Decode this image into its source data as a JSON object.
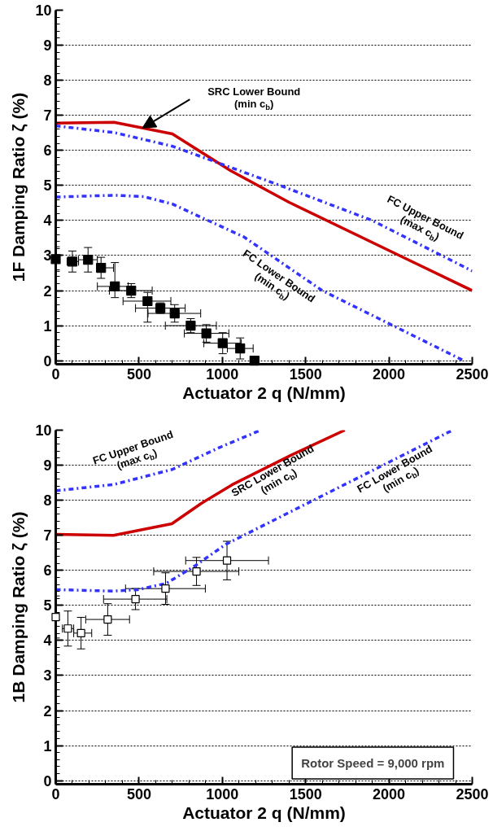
{
  "chart_data": [
    {
      "type": "line",
      "xlabel": "Actuator 2 q (N/mm)",
      "ylabel": "1F Damping Ratio ζ (%)",
      "xlim": [
        0,
        2500
      ],
      "ylim": [
        -0.1,
        10
      ],
      "xticks": [
        0,
        500,
        1000,
        1500,
        2000,
        2500
      ],
      "yticks": [
        0,
        1,
        2,
        3,
        4,
        5,
        6,
        7,
        8,
        9,
        10
      ],
      "grid": "y",
      "series": [
        {
          "color": "#cc0000",
          "line_style": "solid",
          "x": [
            0,
            350,
            700,
            1050,
            1400,
            2500
          ],
          "values": [
            6.78,
            6.8,
            6.47,
            5.42,
            4.52,
            2.0
          ]
        },
        {
          "color": "#3333ff",
          "line_style": "dashdot",
          "x": [
            0,
            350,
            700,
            1330,
            1900,
            2500
          ],
          "values": [
            6.7,
            6.51,
            6.12,
            5.03,
            4.0,
            2.56
          ]
        },
        {
          "color": "#3333ff",
          "line_style": "dashdot",
          "x": [
            0,
            350,
            530,
            700,
            1130,
            1600,
            2450
          ],
          "values": [
            4.67,
            4.72,
            4.68,
            4.47,
            3.53,
            2.0,
            0.0
          ]
        },
        {
          "type": "scatter",
          "color": "#000000",
          "marker": "square",
          "x": [
            0,
            100,
            194,
            272,
            355,
            453,
            551,
            628,
            714,
            810,
            904,
            1002,
            1107,
            1193
          ],
          "values": [
            2.9,
            2.83,
            2.88,
            2.65,
            2.12,
            2.0,
            1.7,
            1.5,
            1.35,
            1.0,
            0.78,
            0.5,
            0.35,
            0.0
          ],
          "errors": [
            0.35,
            0.3,
            0.35,
            0.3,
            [
              1.8,
              2.8
            ],
            0.2,
            [
              1.1,
              1.95
            ],
            0.15,
            0.25,
            0.2,
            0.25,
            0.3,
            0.3,
            0.1
          ],
          "xerrors": [
            null,
            [
              68,
              137
            ],
            [
              137,
              250
            ],
            [
              247,
              347
            ],
            [
              250,
              435
            ],
            [
              322,
              579
            ],
            [
              404,
              691
            ],
            [
              479,
              777
            ],
            [
              554,
              870
            ],
            [
              658,
              964
            ],
            [
              772,
              1039
            ],
            [
              889,
              1114
            ],
            [
              1030,
              1185
            ],
            [
              1170,
              1215
            ]
          ]
        }
      ],
      "annotations": [
        "SRC Lower Bound\n(min c$_{b}$)",
        "FC Upper Bound\n(max c$_{b}$)",
        "FC Lower Bound\n(min c$_{b}$)"
      ]
    },
    {
      "type": "line",
      "xlabel": "Actuator 2 q (N/mm)",
      "ylabel": "1B Damping Ratio ζ (%)",
      "xlim": [
        0,
        2500
      ],
      "ylim": [
        -0.1,
        10
      ],
      "xticks": [
        0,
        500,
        1000,
        1500,
        2000,
        2500
      ],
      "yticks": [
        0,
        1,
        2,
        3,
        4,
        5,
        6,
        7,
        8,
        9,
        10
      ],
      "grid": "y",
      "series": [
        {
          "color": "#3333ff",
          "line_style": "dashdot",
          "x": [
            0,
            350,
            700,
            980,
            1230
          ],
          "values": [
            8.27,
            8.45,
            8.88,
            9.5,
            10.0
          ]
        },
        {
          "color": "#cc0000",
          "line_style": "solid",
          "x": [
            0,
            347,
            697,
            870,
            1058,
            1414,
            1735
          ],
          "values": [
            7.03,
            7.0,
            7.33,
            7.9,
            8.44,
            9.29,
            10.0
          ]
        },
        {
          "color": "#3333ff",
          "line_style": "dashdot",
          "x": [
            0,
            344,
            494,
            664,
            833,
            1020,
            2382
          ],
          "values": [
            5.45,
            5.41,
            5.45,
            5.63,
            6.12,
            6.74,
            10.0
          ]
        },
        {
          "type": "scatter",
          "color": "#000000",
          "marker": "square",
          "x": [
            0,
            73,
            152,
            312,
            479,
            659,
            845,
            1028
          ],
          "values": [
            4.67,
            4.34,
            4.21,
            4.6,
            5.18,
            5.48,
            5.97,
            6.28
          ],
          "errors": [
            0.6,
            0.5,
            0.45,
            0.45,
            0.3,
            0.45,
            0.4,
            0.55
          ],
          "xerrors": [
            null,
            [
              40,
              108
            ],
            [
              108,
              216
            ],
            [
              180,
              443
            ],
            [
              287,
              667
            ],
            [
              419,
              898
            ],
            [
              588,
              1099
            ],
            [
              780,
              1277
            ]
          ]
        }
      ],
      "annotations": [
        "FC Upper Bound\n(max c$_{b}$)",
        "SRC Lower Bound\n(min c$_{b}$)",
        "FC Lower Bound\n(min c$_{b}$)",
        "Rotor Speed = 9,000 rpm"
      ]
    }
  ]
}
